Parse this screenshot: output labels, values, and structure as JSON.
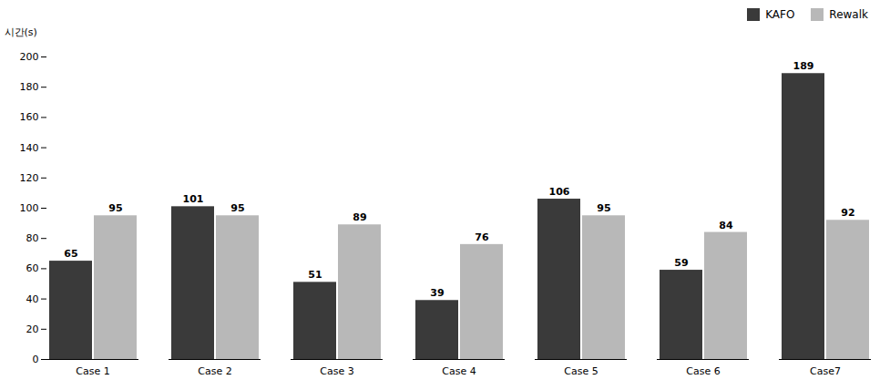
{
  "chart_data": {
    "type": "bar",
    "categories": [
      "Case 1",
      "Case 2",
      "Case 3",
      "Case 4",
      "Case 5",
      "Case 6",
      "Case7"
    ],
    "series": [
      {
        "name": "KAFO",
        "color": "#3a3a3a",
        "values": [
          65,
          101,
          51,
          39,
          106,
          59,
          189
        ]
      },
      {
        "name": "Rewalk",
        "color": "#b8b8b8",
        "values": [
          95,
          95,
          89,
          76,
          95,
          84,
          92
        ]
      }
    ],
    "y_label": "시간(s)",
    "ylim": [
      0,
      200
    ],
    "yticks": [
      0,
      20,
      40,
      60,
      80,
      100,
      120,
      140,
      160,
      180,
      200
    ],
    "data_labels": true,
    "legend": "upper right",
    "grid": false
  }
}
